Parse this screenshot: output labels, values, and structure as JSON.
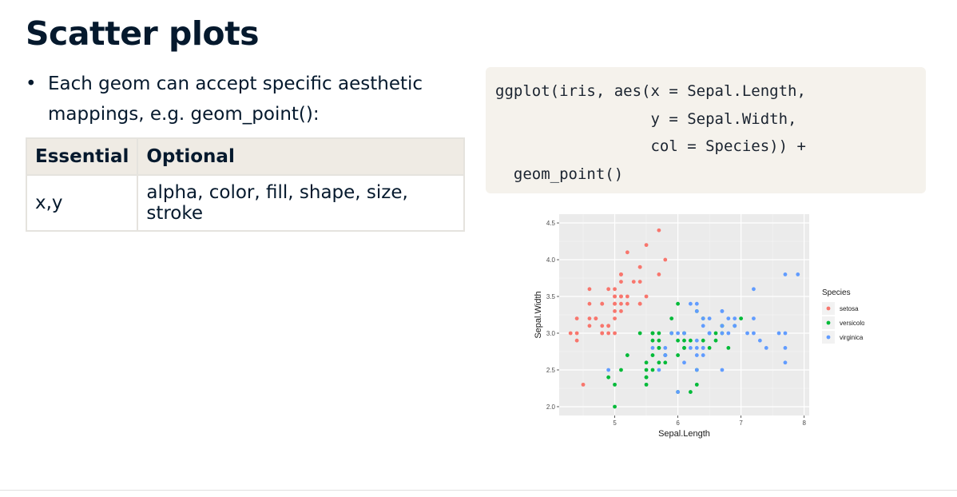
{
  "slide": {
    "title": "Scatter plots",
    "bullet": "Each geom can accept specific aesthetic mappings, e.g. geom_point():"
  },
  "table": {
    "headers": [
      "Essential",
      "Optional"
    ],
    "rows": [
      [
        "x,y",
        "alpha, color, fill, shape, size, stroke"
      ]
    ]
  },
  "code": "ggplot(iris, aes(x = Sepal.Length,\n                 y = Sepal.Width,\n                 col = Species)) +\n  geom_point()",
  "colors": {
    "setosa": "#f8766d",
    "versicolor": "#00ba38",
    "virginica": "#619cff",
    "panel": "#ebebeb",
    "code_bg": "#f5f2ec",
    "table_header_bg": "#efebe4"
  },
  "chart_data": {
    "type": "scatter",
    "xlabel": "Sepal.Length",
    "ylabel": "Sepal.Width",
    "xlim": [
      4.3,
      7.9
    ],
    "ylim": [
      2.0,
      4.5
    ],
    "xticks": [
      5,
      6,
      7,
      8
    ],
    "yticks": [
      2.0,
      2.5,
      3.0,
      3.5,
      4.0,
      4.5
    ],
    "grid": true,
    "legend_title": "Species",
    "legend_position": "right",
    "series": [
      {
        "name": "setosa",
        "color": "#f8766d",
        "x": [
          5.1,
          4.9,
          4.7,
          4.6,
          5.0,
          5.4,
          4.6,
          5.0,
          4.4,
          4.9,
          5.4,
          4.8,
          4.8,
          4.3,
          5.8,
          5.7,
          5.4,
          5.1,
          5.7,
          5.1,
          5.4,
          5.1,
          4.6,
          5.1,
          4.8,
          5.0,
          5.0,
          5.2,
          5.2,
          4.7,
          4.8,
          5.4,
          5.2,
          5.5,
          4.9,
          5.0,
          5.5,
          4.9,
          4.4,
          5.1,
          5.0,
          4.5,
          4.4,
          5.0,
          5.1,
          4.8,
          5.1,
          4.6,
          5.3,
          5.0
        ],
        "y": [
          3.5,
          3.0,
          3.2,
          3.1,
          3.6,
          3.9,
          3.4,
          3.4,
          2.9,
          3.1,
          3.7,
          3.4,
          3.0,
          3.0,
          4.0,
          4.4,
          3.9,
          3.5,
          3.8,
          3.8,
          3.4,
          3.7,
          3.6,
          3.3,
          3.4,
          3.0,
          3.4,
          3.5,
          3.4,
          3.2,
          3.1,
          3.4,
          4.1,
          4.2,
          3.1,
          3.2,
          3.5,
          3.6,
          3.0,
          3.4,
          3.5,
          2.3,
          3.2,
          3.5,
          3.8,
          3.0,
          3.8,
          3.2,
          3.7,
          3.3
        ]
      },
      {
        "name": "versicolor",
        "color": "#00ba38",
        "x": [
          7.0,
          6.4,
          6.9,
          5.5,
          6.5,
          5.7,
          6.3,
          4.9,
          6.6,
          5.2,
          5.0,
          5.9,
          6.0,
          6.1,
          5.6,
          6.7,
          5.6,
          5.8,
          6.2,
          5.6,
          5.9,
          6.1,
          6.3,
          6.1,
          6.4,
          6.6,
          6.8,
          6.7,
          6.0,
          5.7,
          5.5,
          5.5,
          5.8,
          6.0,
          5.4,
          6.0,
          6.7,
          6.3,
          5.6,
          5.5,
          5.5,
          6.1,
          5.8,
          5.0,
          5.6,
          5.7,
          5.7,
          6.2,
          5.1,
          5.7
        ],
        "y": [
          3.2,
          3.2,
          3.1,
          2.3,
          2.8,
          2.8,
          3.3,
          2.4,
          2.9,
          2.7,
          2.0,
          3.0,
          2.2,
          2.9,
          2.9,
          3.1,
          3.0,
          2.7,
          2.2,
          2.5,
          3.2,
          2.8,
          2.5,
          2.8,
          2.9,
          3.0,
          2.8,
          3.0,
          2.9,
          2.6,
          2.4,
          2.4,
          2.7,
          2.7,
          3.0,
          3.4,
          3.1,
          2.3,
          3.0,
          2.5,
          2.6,
          3.0,
          2.6,
          2.3,
          2.7,
          3.0,
          2.9,
          2.9,
          2.5,
          2.8
        ]
      },
      {
        "name": "virginica",
        "color": "#619cff",
        "x": [
          6.3,
          5.8,
          7.1,
          6.3,
          6.5,
          7.6,
          4.9,
          7.3,
          6.7,
          7.2,
          6.5,
          6.4,
          6.8,
          5.7,
          5.8,
          6.4,
          6.5,
          7.7,
          7.7,
          6.0,
          6.9,
          5.6,
          7.7,
          6.3,
          6.7,
          7.2,
          6.2,
          6.1,
          6.4,
          7.2,
          7.4,
          7.9,
          6.4,
          6.3,
          6.1,
          7.7,
          6.3,
          6.4,
          6.0,
          6.9,
          6.7,
          6.9,
          5.8,
          6.8,
          6.7,
          6.7,
          6.3,
          6.5,
          6.2,
          5.9
        ],
        "y": [
          3.3,
          2.7,
          3.0,
          2.9,
          3.0,
          3.0,
          2.5,
          2.9,
          2.5,
          3.6,
          3.2,
          2.7,
          3.0,
          2.5,
          2.8,
          3.2,
          3.0,
          3.8,
          2.6,
          2.2,
          3.2,
          2.8,
          2.8,
          2.7,
          3.3,
          3.2,
          2.8,
          3.0,
          2.8,
          3.0,
          2.8,
          3.8,
          2.8,
          2.8,
          2.6,
          3.0,
          3.4,
          3.1,
          3.0,
          3.1,
          3.1,
          3.1,
          2.7,
          3.2,
          3.3,
          3.0,
          2.5,
          3.0,
          3.4,
          3.0
        ]
      }
    ]
  }
}
